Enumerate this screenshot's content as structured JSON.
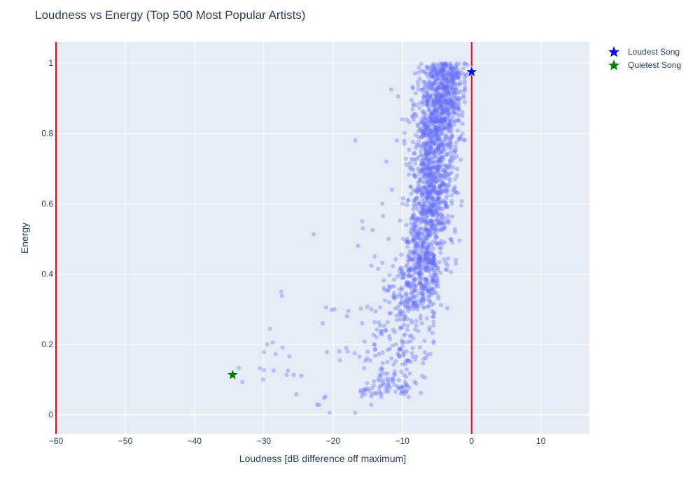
{
  "chart_data": {
    "type": "scatter",
    "title": "Loudness vs Energy (Top 500 Most Popular Artists)",
    "xlabel": "Loudness [dB difference off maximum]",
    "ylabel": "Energy",
    "xlim": [
      -60,
      17
    ],
    "ylim": [
      -0.055,
      1.06
    ],
    "xticks": [
      -60,
      -50,
      -40,
      -30,
      -20,
      -10,
      0,
      10
    ],
    "xtick_labels": [
      "−60",
      "−50",
      "−40",
      "−30",
      "−20",
      "−10",
      "0",
      "10"
    ],
    "yticks": [
      0,
      0.2,
      0.4,
      0.6,
      0.8,
      1
    ],
    "ytick_labels": [
      "0",
      "0.2",
      "0.4",
      "0.6",
      "0.8",
      "1"
    ],
    "grid": true,
    "vertical_lines": [
      {
        "x": -60,
        "color": "#ff0000"
      },
      {
        "x": 0,
        "color": "#ff0000"
      }
    ],
    "scatter_color": "#636efa",
    "scatter_opacity": 0.35,
    "points": [
      [
        -22.8,
        0.513
      ],
      [
        -16.8,
        0.78
      ],
      [
        -15.8,
        0.55
      ],
      [
        -15.7,
        0.53
      ],
      [
        -16.4,
        0.48
      ],
      [
        -27.5,
        0.35
      ],
      [
        -27.4,
        0.338
      ],
      [
        -21.0,
        0.305
      ],
      [
        -20.2,
        0.298
      ],
      [
        -19.8,
        0.3
      ],
      [
        -17.8,
        0.295
      ],
      [
        -16.0,
        0.302
      ],
      [
        -21.5,
        0.26
      ],
      [
        -18.0,
        0.28
      ],
      [
        -29.1,
        0.244
      ],
      [
        -29.5,
        0.2
      ],
      [
        -28.7,
        0.205
      ],
      [
        -27.3,
        0.191
      ],
      [
        -30.0,
        0.178
      ],
      [
        -28.3,
        0.172
      ],
      [
        -26.3,
        0.166
      ],
      [
        -33.6,
        0.133
      ],
      [
        -30.6,
        0.132
      ],
      [
        -30.0,
        0.127
      ],
      [
        -28.6,
        0.125
      ],
      [
        -26.5,
        0.125
      ],
      [
        -26.7,
        0.113
      ],
      [
        -25.7,
        0.113
      ],
      [
        -24.6,
        0.11
      ],
      [
        -30.1,
        0.1
      ],
      [
        -33.1,
        0.093
      ],
      [
        -25.3,
        0.058
      ],
      [
        -22.3,
        0.028
      ],
      [
        -22.0,
        0.028
      ],
      [
        -21.1,
        0.052
      ],
      [
        -21.3,
        0.047
      ],
      [
        -20.5,
        0.005
      ],
      [
        -16.8,
        0.005
      ],
      [
        -20.9,
        0.178
      ],
      [
        -19.1,
        0.18
      ],
      [
        -19.0,
        0.155
      ],
      [
        -18.1,
        0.19
      ],
      [
        -17.9,
        0.18
      ],
      [
        -16.2,
        0.165
      ],
      [
        -16.9,
        0.175
      ],
      [
        -15.5,
        0.132
      ],
      [
        -15.1,
        0.16
      ],
      [
        -15.4,
        0.058
      ],
      [
        -15.3,
        0.072
      ],
      [
        -14.8,
        0.068
      ],
      [
        -14.5,
        0.028
      ],
      [
        -14.1,
        0.095
      ],
      [
        -13.5,
        0.1
      ],
      [
        -12.8,
        0.098
      ],
      [
        -12.4,
        0.065
      ],
      [
        -12.2,
        0.072
      ],
      [
        -11.0,
        0.065
      ],
      [
        -10.6,
        0.075
      ],
      [
        -10.5,
        0.098
      ],
      [
        -10.2,
        0.06
      ],
      [
        -10.0,
        0.08
      ],
      [
        -9.5,
        0.062
      ],
      [
        -9.1,
        0.05
      ],
      [
        -9.5,
        0.085
      ],
      [
        -8.7,
        0.225
      ],
      [
        -14.0,
        0.45
      ],
      [
        -13.5,
        0.415
      ],
      [
        -14.3,
        0.525
      ],
      [
        -12.8,
        0.565
      ],
      [
        -12.9,
        0.6
      ],
      [
        -11.5,
        0.64
      ],
      [
        -12.3,
        0.72
      ],
      [
        -10.8,
        0.78
      ],
      [
        -10.0,
        0.84
      ],
      [
        -10.6,
        0.905
      ],
      [
        -11.6,
        0.925
      ],
      [
        -12.0,
        0.5
      ],
      [
        -11.2,
        0.365
      ],
      [
        -12.7,
        0.36
      ],
      [
        -11.9,
        0.32
      ],
      [
        -13.2,
        0.305
      ],
      [
        -14.5,
        0.3
      ],
      [
        -13.0,
        0.238
      ],
      [
        -12.4,
        0.24
      ],
      [
        -11.8,
        0.215
      ],
      [
        -11.1,
        0.235
      ],
      [
        -10.9,
        0.2
      ],
      [
        -10.3,
        0.245
      ],
      [
        -9.6,
        0.28
      ],
      [
        -9.4,
        0.18
      ],
      [
        -8.8,
        0.15
      ],
      [
        -8.4,
        0.35
      ],
      [
        -7.8,
        0.3
      ],
      [
        -7.2,
        0.26
      ],
      [
        -6.8,
        0.21
      ],
      [
        -6.1,
        0.24
      ],
      [
        -5.4,
        0.29
      ],
      [
        -4.8,
        0.33
      ],
      [
        -4.9,
        0.375
      ],
      [
        -3.5,
        0.425
      ],
      [
        -3.0,
        0.405
      ],
      [
        -2.3,
        0.44
      ],
      [
        -2.8,
        0.49
      ],
      [
        -2.4,
        0.52
      ],
      [
        -1.5,
        0.595
      ],
      [
        -1.4,
        0.607
      ],
      [
        -2.0,
        0.63
      ],
      [
        -2.1,
        0.68
      ],
      [
        -1.6,
        0.9
      ],
      [
        -0.8,
        0.965
      ],
      [
        -1.2,
        0.985
      ],
      [
        -0.6,
        0.995
      ],
      [
        -1.0,
        0.93
      ],
      [
        -1.7,
        0.94
      ],
      [
        -2.0,
        0.96
      ],
      [
        -0.5,
        0.97
      ]
    ],
    "cluster": {
      "x_mean": -5.9,
      "x_sd": 2.1,
      "y_min": 0.3,
      "y_max": 1.0,
      "count": 1700
    },
    "lower_tail": {
      "x_mean": -9.5,
      "x_sd": 2.8,
      "y_min": 0.05,
      "y_max": 0.45,
      "count": 280
    },
    "highlights": [
      {
        "name": "Loudest Song",
        "x": 0.0,
        "y": 0.975,
        "color": "#0000ff"
      },
      {
        "name": "Quietest Song",
        "x": -34.5,
        "y": 0.113,
        "color": "#008000"
      }
    ],
    "legend_position": "top-right"
  }
}
